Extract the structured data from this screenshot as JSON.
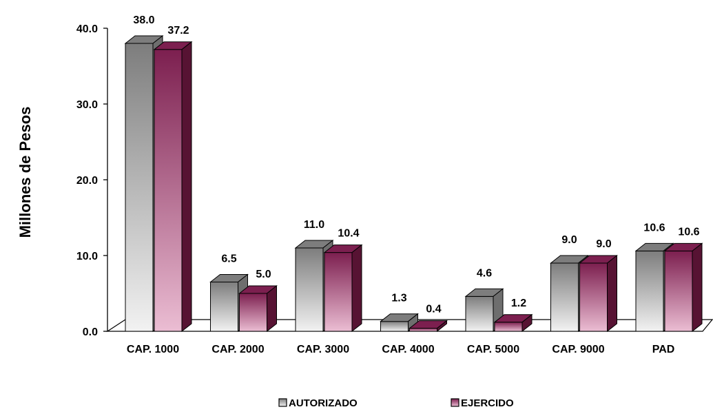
{
  "chart_data": {
    "type": "bar",
    "style": "3d-clustered-column",
    "title": "",
    "xlabel": "",
    "ylabel": "Millones de Pesos",
    "ylim": [
      0,
      40
    ],
    "yticks": [
      "0.0",
      "10.0",
      "20.0",
      "30.0",
      "40.0"
    ],
    "categories": [
      "CAP. 1000",
      "CAP. 2000",
      "CAP. 3000",
      "CAP. 4000",
      "CAP. 5000",
      "CAP. 9000",
      "PAD"
    ],
    "series": [
      {
        "name": "AUTORIZADO",
        "values": [
          38.0,
          6.5,
          11.0,
          1.3,
          4.6,
          9.0,
          10.6
        ],
        "labels": [
          "38.0",
          "6.5",
          "11.0",
          "1.3",
          "4.6",
          "9.0",
          "10.6"
        ],
        "color_top": "#7d7d7d",
        "color_bottom": "#f2f2f2",
        "color_side": "#6e6e6e"
      },
      {
        "name": "EJERCIDO",
        "values": [
          37.2,
          5.0,
          10.4,
          0.4,
          1.2,
          9.0,
          10.6
        ],
        "labels": [
          "37.2",
          "5.0",
          "10.4",
          "0.4",
          "1.2",
          "9.0",
          "10.6"
        ],
        "color_top": "#7c1f4f",
        "color_bottom": "#ebbdd3",
        "color_side": "#571333"
      }
    ],
    "grid": false,
    "legend_position": "bottom"
  }
}
